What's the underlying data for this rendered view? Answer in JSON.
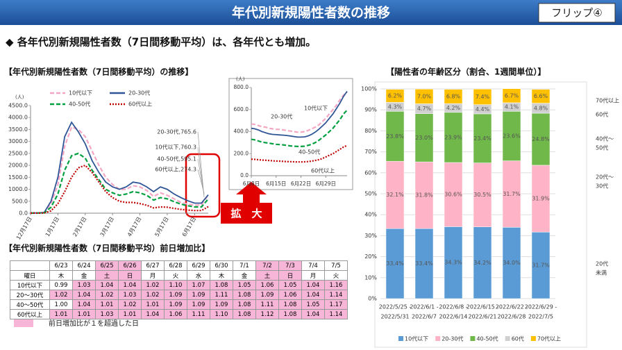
{
  "header": {
    "title": "年代別新規陽性者数の推移",
    "badge": "フリップ④"
  },
  "subtitle": "◆ 各年代別新規陽性者数（7日間移動平均）は、各年代とも増加。",
  "zoom_label": "拡　大",
  "chart_data": [
    {
      "type": "line",
      "title": "【年代別新規陽性者数（7日間移動平均）の推移】",
      "y_unit": "(人)",
      "categories": [
        "12月17日",
        null,
        null,
        null,
        "1月17日",
        null,
        null,
        null,
        "2月17日",
        null,
        null,
        null,
        "3月17日",
        null,
        null,
        null,
        "4月17日",
        null,
        null,
        null,
        "5月17日",
        null,
        null,
        null,
        "6月17日",
        null,
        null
      ],
      "series": [
        {
          "name": "10代以下",
          "color": "#f4a6c4",
          "dash": "dashed",
          "values": [
            10,
            10,
            30,
            400,
            1200,
            2800,
            3600,
            3500,
            3200,
            2600,
            2000,
            1500,
            1200,
            1000,
            1000,
            1150,
            1100,
            950,
            700,
            850,
            750,
            600,
            450,
            380,
            330,
            350,
            760.3
          ]
        },
        {
          "name": "20-30代",
          "color": "#2f5597",
          "dash": "solid",
          "values": [
            10,
            10,
            30,
            500,
            1500,
            3200,
            3800,
            3400,
            2900,
            2200,
            1700,
            1300,
            1100,
            1000,
            1100,
            1300,
            1250,
            1100,
            900,
            1100,
            1000,
            800,
            650,
            520,
            420,
            420,
            765.6
          ]
        },
        {
          "name": "40-50代",
          "color": "#00a040",
          "dash": "dashed",
          "values": [
            5,
            5,
            15,
            250,
            800,
            1800,
            2400,
            2500,
            2300,
            1800,
            1400,
            1000,
            850,
            750,
            800,
            900,
            850,
            750,
            550,
            650,
            600,
            480,
            380,
            310,
            260,
            260,
            595.1
          ]
        },
        {
          "name": "60代以上",
          "color": "#c00000",
          "dash": "dotted",
          "values": [
            2,
            3,
            8,
            100,
            400,
            900,
            1500,
            1900,
            2000,
            1700,
            1300,
            900,
            650,
            500,
            450,
            450,
            400,
            330,
            220,
            260,
            250,
            200,
            160,
            130,
            110,
            110,
            274.3
          ]
        }
      ],
      "ylim": [
        0,
        4500
      ],
      "yticks": [
        {
          "value": 0,
          "label": "0.0"
        },
        {
          "value": 500,
          "label": "500.0"
        },
        {
          "value": 1000,
          "label": "1000.0"
        },
        {
          "value": 1500,
          "label": "1500.0"
        },
        {
          "value": 2000,
          "label": "2000.0"
        },
        {
          "value": 2500,
          "label": "2500.0"
        },
        {
          "value": 3000,
          "label": "3000.0"
        },
        {
          "value": 3500,
          "label": "3500.0"
        },
        {
          "value": 4000,
          "label": "4000.0"
        },
        {
          "value": 4500,
          "label": "4500.0"
        }
      ],
      "grid": false,
      "legend": true,
      "annotations": [
        "20-30代,765.6",
        "10代以下,760.3",
        "40-50代,595.1",
        "60代以上,274.3"
      ]
    },
    {
      "type": "line",
      "y_unit": "(人)",
      "categories": [
        "6月8日",
        null,
        null,
        null,
        null,
        null,
        null,
        "6月15日",
        null,
        null,
        null,
        null,
        null,
        null,
        "6月22日",
        null,
        null,
        null,
        null,
        null,
        null,
        "6月29日",
        null,
        null,
        null,
        null,
        null,
        null
      ],
      "series": [
        {
          "name": "10代以下",
          "color": "#f4a6c4",
          "dash": "dashed",
          "values": [
            470,
            465,
            455,
            445,
            440,
            430,
            425,
            420,
            420,
            415,
            410,
            405,
            400,
            395,
            395,
            400,
            410,
            425,
            440,
            460,
            490,
            520,
            560,
            600,
            640,
            690,
            730,
            760.3
          ]
        },
        {
          "name": "20-30代",
          "color": "#2f5597",
          "dash": "solid",
          "values": [
            430,
            425,
            415,
            400,
            390,
            380,
            375,
            372,
            370,
            368,
            365,
            360,
            355,
            350,
            350,
            352,
            360,
            375,
            395,
            420,
            450,
            480,
            520,
            560,
            610,
            660,
            720,
            765.6
          ]
        },
        {
          "name": "40-50代",
          "color": "#00a040",
          "dash": "dashed",
          "values": [
            330,
            325,
            315,
            305,
            300,
            295,
            290,
            285,
            282,
            280,
            275,
            270,
            268,
            265,
            265,
            268,
            275,
            285,
            300,
            320,
            345,
            370,
            400,
            430,
            470,
            510,
            560,
            595.1
          ]
        },
        {
          "name": "60代以上",
          "color": "#c00000",
          "dash": "dotted",
          "values": [
            150,
            148,
            145,
            142,
            140,
            138,
            135,
            133,
            132,
            130,
            128,
            127,
            126,
            125,
            125,
            126,
            128,
            132,
            138,
            145,
            155,
            170,
            185,
            200,
            220,
            240,
            260,
            274.3
          ]
        }
      ],
      "ylim": [
        0,
        800
      ],
      "yticks": [
        {
          "value": 0,
          "label": "0.0"
        },
        {
          "value": 200,
          "label": "200.0"
        },
        {
          "value": 400,
          "label": "400.0"
        },
        {
          "value": 600,
          "label": "600.0"
        },
        {
          "value": 800,
          "label": "800.0"
        }
      ],
      "grid": false,
      "legend": false
    },
    {
      "type": "stacked_bar",
      "title": "【陽性者の年齢区分（割合、1週間単位）】",
      "categories": [
        [
          "2022/5/25 -",
          "2022/5/31"
        ],
        [
          "2022/6/1 -",
          "2022/6/7"
        ],
        [
          "2022/6/8 -",
          "2022/6/14"
        ],
        [
          "2022/6/15 -",
          "2022/6/21"
        ],
        [
          "2022/6/22 -",
          "2022/6/28"
        ],
        [
          "2022/6/29 -",
          "2022/7/5"
        ]
      ],
      "series": [
        {
          "name": "10代以下",
          "color": "#5b9bd5",
          "values": [
            33.4,
            33.4,
            34.3,
            34.2,
            34.0,
            31.7
          ],
          "value_labels": [
            "33.4%",
            "33.4%",
            "34.3%",
            "34.2%",
            "34.0%",
            "31.7%"
          ]
        },
        {
          "name": "20-30代",
          "color": "#ffb3c6",
          "values": [
            32.1,
            31.8,
            30.6,
            30.5,
            31.7,
            31.9
          ],
          "value_labels": [
            "32.1%",
            "31.8%",
            "30.6%",
            "30.5%",
            "31.7%",
            "31.9%"
          ]
        },
        {
          "name": "40-50代",
          "color": "#70b84a",
          "values": [
            23.8,
            23.0,
            23.9,
            23.4,
            23.6,
            24.8
          ],
          "value_labels": [
            "23.8%",
            "23.0%",
            "23.9%",
            "23.4%",
            "23.6%",
            "24.8%"
          ]
        },
        {
          "name": "60代",
          "color": "#d0d0d0",
          "values": [
            4.3,
            4.7,
            4.2,
            4.4,
            4.1,
            4.8
          ],
          "value_labels": [
            "4.3%",
            "4.7%",
            "4.2%",
            "4.4%",
            "4.1%",
            "4.8%"
          ]
        },
        {
          "name": "70代以上",
          "color": "#ffc000",
          "values": [
            6.2,
            7.0,
            6.8,
            7.4,
            6.7,
            6.6
          ],
          "value_labels": [
            "6.2%",
            "7.0%",
            "6.8%",
            "7.4%",
            "6.7%",
            "6.6%"
          ]
        }
      ],
      "ylim": [
        0,
        100
      ],
      "yticks": [
        {
          "value": 0,
          "label": "0%"
        },
        {
          "value": 10,
          "label": "10%"
        },
        {
          "value": 20,
          "label": "20%"
        },
        {
          "value": 30,
          "label": "30%"
        },
        {
          "value": 40,
          "label": "40%"
        },
        {
          "value": 50,
          "label": "50%"
        },
        {
          "value": 60,
          "label": "60%"
        },
        {
          "value": 70,
          "label": "70%"
        },
        {
          "value": 80,
          "label": "80%"
        },
        {
          "value": 90,
          "label": "90%"
        },
        {
          "value": 100,
          "label": "100%"
        }
      ],
      "grid": true,
      "legend": true,
      "side_labels": [
        [
          "70代以上"
        ],
        [
          "60代"
        ],
        [
          "40代～",
          "50代"
        ],
        [
          "20代～",
          "30代"
        ],
        [
          "20代",
          "未満"
        ]
      ]
    }
  ],
  "table": {
    "title": "【年代別新規陽性者数（7日間移動平均）前日増加比】",
    "dates": [
      "6/23",
      "6/24",
      "6/25",
      "6/26",
      "6/27",
      "6/28",
      "6/29",
      "6/30",
      "7/1",
      "7/2",
      "7/3",
      "7/4",
      "7/5"
    ],
    "weekday_label": "曜日",
    "weekdays": [
      "木",
      "金",
      "土",
      "日",
      "月",
      "火",
      "水",
      "木",
      "金",
      "土",
      "日",
      "月",
      "火"
    ],
    "rows": [
      {
        "label": "10代以下",
        "values": [
          "0.99",
          "1.03",
          "1.04",
          "1.04",
          "1.02",
          "1.10",
          "1.07",
          "1.08",
          "1.05",
          "1.06",
          "1.05",
          "1.04",
          "1.16"
        ]
      },
      {
        "label": "20～30代",
        "values": [
          "1.02",
          "1.04",
          "1.02",
          "1.03",
          "1.02",
          "1.09",
          "1.09",
          "1.11",
          "1.08",
          "1.09",
          "1.06",
          "1.04",
          "1.14"
        ]
      },
      {
        "label": "40～50代",
        "values": [
          "1.00",
          "1.04",
          "1.01",
          "1.02",
          "1.01",
          "1.09",
          "1.09",
          "1.09",
          "1.08",
          "1.11",
          "1.08",
          "1.05",
          "1.17"
        ]
      },
      {
        "label": "60代以上",
        "values": [
          "1.01",
          "1.01",
          "1.03",
          "1.01",
          "1.04",
          "1.06",
          "1.11",
          "1.10",
          "1.08",
          "1.12",
          "1.08",
          "1.04",
          "1.14"
        ]
      }
    ],
    "note": "前日増加比が１を超過した日"
  }
}
